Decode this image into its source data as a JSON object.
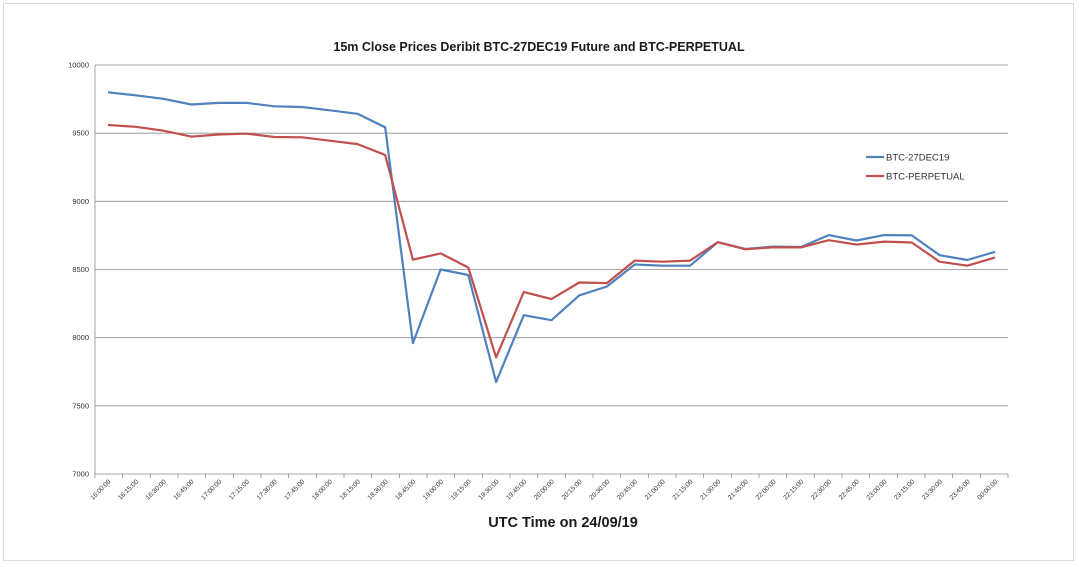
{
  "chart_data": {
    "type": "line",
    "title": "15m Close Prices Deribit BTC-27DEC19 Future and BTC-PERPETUAL",
    "xlabel": "UTC Time on 24/09/19",
    "ylabel": "",
    "ylim": [
      7000,
      10000
    ],
    "y_ticks": [
      "7000",
      "7500",
      "8000",
      "8500",
      "9000",
      "9500",
      "10000"
    ],
    "grid": true,
    "legend_position": "right",
    "categories": [
      "16:00:00",
      "16:15:00",
      "16:30:00",
      "16:45:00",
      "17:00:00",
      "17:15:00",
      "17:30:00",
      "17:45:00",
      "18:00:00",
      "18:15:00",
      "18:30:00",
      "18:45:00",
      "19:00:00",
      "19:15:00",
      "19:30:00",
      "19:45:00",
      "20:00:00",
      "20:15:00",
      "20:30:00",
      "20:45:00",
      "21:00:00",
      "21:15:00",
      "21:30:00",
      "21:45:00",
      "22:00:00",
      "22:15:00",
      "22:30:00",
      "22:45:00",
      "23:00:00",
      "23:15:00",
      "23:30:00",
      "23:45:00",
      "00:00:00"
    ],
    "series": [
      {
        "name": "BTC-27DEC19",
        "color": "#4f81bd",
        "values": [
          9800,
          9778,
          9752,
          9710,
          9722,
          9722,
          9697,
          9692,
          9668,
          9642,
          9543,
          7960,
          8500,
          8460,
          7675,
          8165,
          8128,
          8310,
          8375,
          8537,
          8528,
          8528,
          8700,
          8650,
          8668,
          8665,
          8752,
          8713,
          8752,
          8750,
          8605,
          8570,
          8630
        ]
      },
      {
        "name": "BTC-PERPETUAL",
        "color": "#c0504d",
        "values": [
          9560,
          9547,
          9518,
          9475,
          9490,
          9497,
          9472,
          9470,
          9445,
          9420,
          9340,
          8572,
          8618,
          8515,
          7855,
          8335,
          8283,
          8405,
          8400,
          8565,
          8557,
          8565,
          8700,
          8648,
          8663,
          8662,
          8715,
          8683,
          8705,
          8698,
          8557,
          8528,
          8587
        ]
      }
    ]
  }
}
